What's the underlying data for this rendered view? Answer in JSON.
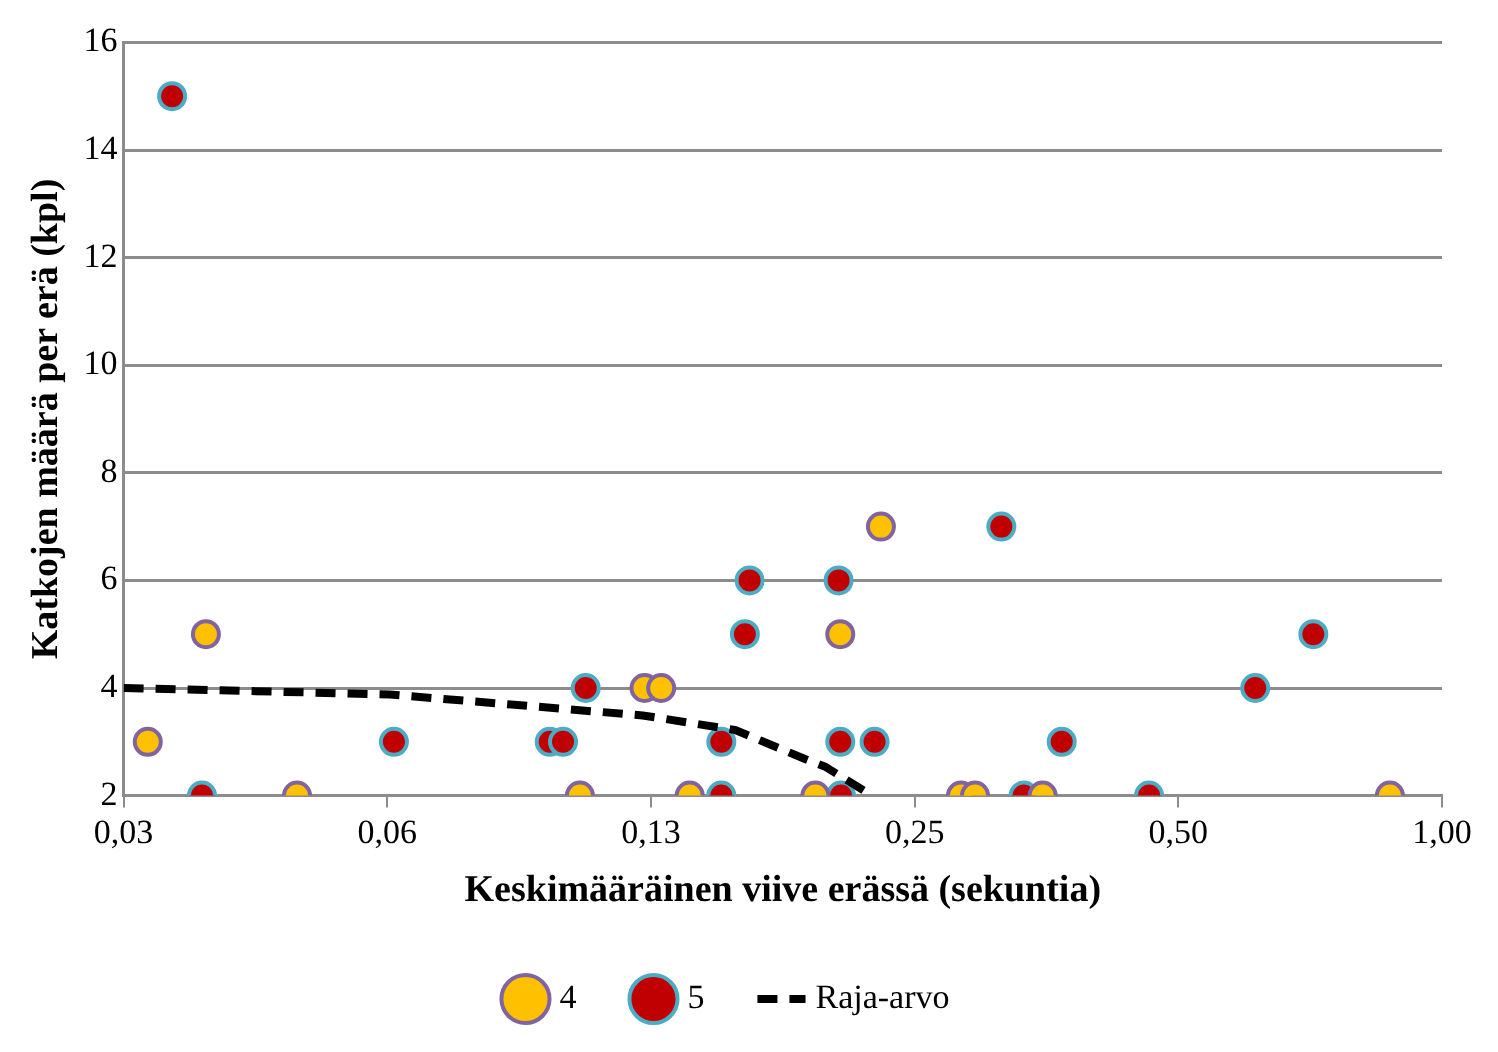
{
  "chart_data": {
    "type": "scatter",
    "xlabel": "Keskimääräinen viive erässä (sekuntia)",
    "ylabel": "Katkojen määrä per erä (kpl)",
    "log": "x",
    "grid": "y",
    "legend": "bottom",
    "marker": "circle",
    "xlim": [
      0.03125,
      1
    ],
    "xticks": [
      {
        "value": 0.03125,
        "label": "0,03"
      },
      {
        "value": 0.0625,
        "label": "0,06"
      },
      {
        "value": 0.125,
        "label": "0,13"
      },
      {
        "value": 0.25,
        "label": "0,25"
      },
      {
        "value": 0.5,
        "label": "0,50"
      },
      {
        "value": 1,
        "label": "1,00"
      }
    ],
    "ylim": [
      2,
      16
    ],
    "yticks": [
      2,
      4,
      6,
      8,
      10,
      12,
      14,
      16
    ],
    "series": [
      {
        "name": "4",
        "color": "#ffc000",
        "x": [
          0.0333,
          0.0388,
          0.0493,
          0.1037,
          0.1229,
          0.1284,
          0.1384,
          0.1926,
          0.2056,
          0.2288,
          0.2824,
          0.293,
          0.35,
          0.872
        ],
        "values": [
          3,
          5,
          2,
          2,
          4,
          4,
          2,
          2,
          5,
          7,
          2,
          2,
          2,
          2
        ]
      },
      {
        "name": "5",
        "color": "#c00000",
        "x": [
          0.0355,
          0.0384,
          0.0636,
          0.0958,
          0.0992,
          0.1053,
          0.1504,
          0.1504,
          0.16,
          0.162,
          0.2047,
          0.2056,
          0.206,
          0.225,
          0.314,
          0.333,
          0.368,
          0.463,
          0.612,
          0.713
        ],
        "values": [
          15,
          2,
          3,
          3,
          3,
          4,
          3,
          2,
          5,
          6,
          6,
          3,
          2,
          3,
          7,
          2,
          3,
          2,
          4,
          5
        ]
      },
      {
        "name": "Raja-arvo",
        "type": "line",
        "color": "#000000",
        "line_style": "dashed",
        "marker": "none",
        "x": [
          0.03125,
          0.0629,
          0.1223,
          0.156,
          0.1874,
          0.198,
          0.2234
        ],
        "values": [
          4,
          3.88,
          3.49,
          3.22,
          2.68,
          2.53,
          2
        ]
      }
    ]
  }
}
